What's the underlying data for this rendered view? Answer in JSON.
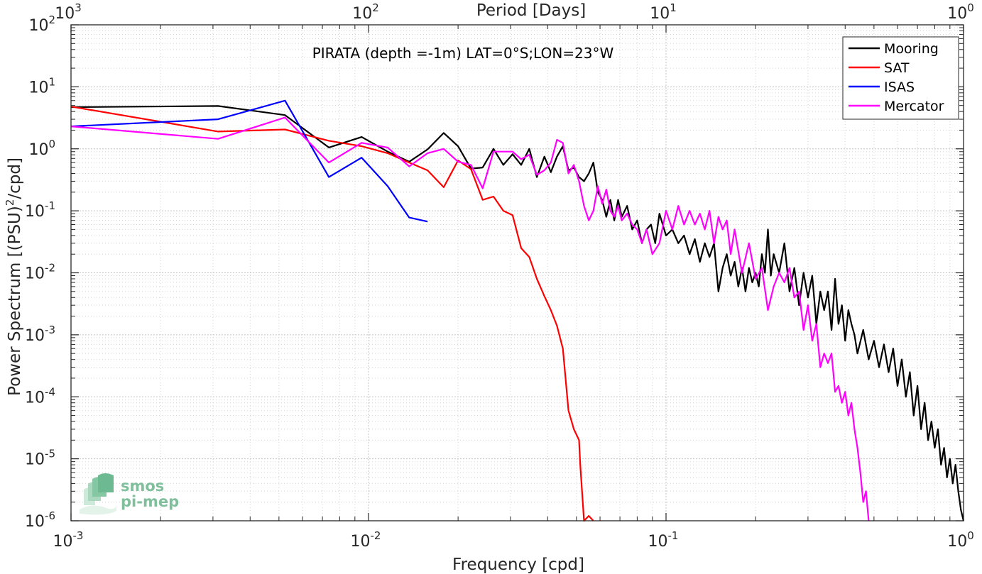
{
  "chart_data": {
    "type": "line",
    "title": "PIRATA (depth =-1m) LAT=0°S;LON=23°W",
    "xlabel": "Frequency [cpd]",
    "ylabel": "Power Spectrum [(PSU)",
    "ylabel_sup": "2",
    "ylabel_tail": "/cpd]",
    "x2label": "Period [Days]",
    "xscale": "log",
    "yscale": "log",
    "xlim": [
      0.001,
      1
    ],
    "ylim": [
      1e-06,
      100
    ],
    "grid": true,
    "legend_position": "top-right",
    "x_ticks": [
      {
        "base": "10",
        "exp": "-3"
      },
      {
        "base": "10",
        "exp": "-2"
      },
      {
        "base": "10",
        "exp": "-1"
      },
      {
        "base": "10",
        "exp": "0"
      }
    ],
    "x2_ticks": [
      {
        "base": "10",
        "exp": "3"
      },
      {
        "base": "10",
        "exp": "2"
      },
      {
        "base": "10",
        "exp": "1"
      },
      {
        "base": "10",
        "exp": "0"
      }
    ],
    "y_ticks": [
      {
        "base": "10",
        "exp": "-6"
      },
      {
        "base": "10",
        "exp": "-5"
      },
      {
        "base": "10",
        "exp": "-4"
      },
      {
        "base": "10",
        "exp": "-3"
      },
      {
        "base": "10",
        "exp": "-2"
      },
      {
        "base": "10",
        "exp": "-1"
      },
      {
        "base": "10",
        "exp": "0"
      },
      {
        "base": "10",
        "exp": "1"
      },
      {
        "base": "10",
        "exp": "2"
      }
    ],
    "series": [
      {
        "name": "Mooring",
        "color": "#000000",
        "points": [
          [
            0.001,
            4.7
          ],
          [
            0.00312,
            4.9
          ],
          [
            0.00524,
            3.5
          ],
          [
            0.00736,
            1.05
          ],
          [
            0.00948,
            1.55
          ],
          [
            0.0116,
            0.9
          ],
          [
            0.0137,
            0.62
          ],
          [
            0.0158,
            0.98
          ],
          [
            0.0179,
            1.8
          ],
          [
            0.02,
            1.1
          ],
          [
            0.0221,
            0.48
          ],
          [
            0.0242,
            0.5
          ],
          [
            0.0263,
            1.0
          ],
          [
            0.0284,
            0.55
          ],
          [
            0.0305,
            0.82
          ],
          [
            0.0326,
            0.55
          ],
          [
            0.0347,
            1.0
          ],
          [
            0.0368,
            0.35
          ],
          [
            0.039,
            0.75
          ],
          [
            0.041,
            0.42
          ],
          [
            0.043,
            0.75
          ],
          [
            0.045,
            1.1
          ],
          [
            0.047,
            0.45
          ],
          [
            0.049,
            0.5
          ],
          [
            0.051,
            0.35
          ],
          [
            0.053,
            0.3
          ],
          [
            0.055,
            0.4
          ],
          [
            0.057,
            0.6
          ],
          [
            0.059,
            0.2
          ],
          [
            0.061,
            0.15
          ],
          [
            0.063,
            0.08
          ],
          [
            0.065,
            0.15
          ],
          [
            0.067,
            0.07
          ],
          [
            0.069,
            0.15
          ],
          [
            0.071,
            0.08
          ],
          [
            0.074,
            0.12
          ],
          [
            0.077,
            0.05
          ],
          [
            0.08,
            0.07
          ],
          [
            0.083,
            0.03
          ],
          [
            0.086,
            0.05
          ],
          [
            0.089,
            0.06
          ],
          [
            0.092,
            0.03
          ],
          [
            0.095,
            0.09
          ],
          [
            0.1,
            0.04
          ],
          [
            0.105,
            0.05
          ],
          [
            0.11,
            0.03
          ],
          [
            0.115,
            0.04
          ],
          [
            0.12,
            0.02
          ],
          [
            0.125,
            0.035
          ],
          [
            0.13,
            0.015
          ],
          [
            0.135,
            0.03
          ],
          [
            0.14,
            0.018
          ],
          [
            0.145,
            0.03
          ],
          [
            0.15,
            0.005
          ],
          [
            0.155,
            0.012
          ],
          [
            0.16,
            0.02
          ],
          [
            0.165,
            0.009
          ],
          [
            0.17,
            0.015
          ],
          [
            0.175,
            0.006
          ],
          [
            0.18,
            0.012
          ],
          [
            0.185,
            0.005
          ],
          [
            0.19,
            0.012
          ],
          [
            0.195,
            0.007
          ],
          [
            0.2,
            0.01
          ],
          [
            0.205,
            0.006
          ],
          [
            0.21,
            0.02
          ],
          [
            0.215,
            0.01
          ],
          [
            0.22,
            0.05
          ],
          [
            0.225,
            0.009
          ],
          [
            0.23,
            0.02
          ],
          [
            0.24,
            0.01
          ],
          [
            0.25,
            0.03
          ],
          [
            0.26,
            0.005
          ],
          [
            0.27,
            0.012
          ],
          [
            0.28,
            0.003
          ],
          [
            0.29,
            0.01
          ],
          [
            0.3,
            0.004
          ],
          [
            0.31,
            0.009
          ],
          [
            0.32,
            0.0015
          ],
          [
            0.33,
            0.005
          ],
          [
            0.34,
            0.0025
          ],
          [
            0.35,
            0.005
          ],
          [
            0.36,
            0.0012
          ],
          [
            0.37,
            0.008
          ],
          [
            0.38,
            0.0015
          ],
          [
            0.39,
            0.003
          ],
          [
            0.4,
            0.0008
          ],
          [
            0.41,
            0.0025
          ],
          [
            0.42,
            0.0015
          ],
          [
            0.43,
            0.001
          ],
          [
            0.44,
            0.0005
          ],
          [
            0.46,
            0.0012
          ],
          [
            0.48,
            0.0004
          ],
          [
            0.5,
            0.0008
          ],
          [
            0.52,
            0.0003
          ],
          [
            0.54,
            0.0007
          ],
          [
            0.56,
            0.00025
          ],
          [
            0.58,
            0.0006
          ],
          [
            0.6,
            0.00015
          ],
          [
            0.62,
            0.0004
          ],
          [
            0.64,
            0.0001
          ],
          [
            0.66,
            0.00025
          ],
          [
            0.68,
            5e-05
          ],
          [
            0.7,
            0.00015
          ],
          [
            0.72,
            3e-05
          ],
          [
            0.74,
            8e-05
          ],
          [
            0.76,
            2e-05
          ],
          [
            0.78,
            4e-05
          ],
          [
            0.8,
            1.5e-05
          ],
          [
            0.82,
            3e-05
          ],
          [
            0.84,
            8e-06
          ],
          [
            0.86,
            1.5e-05
          ],
          [
            0.88,
            5e-06
          ],
          [
            0.9,
            1e-05
          ],
          [
            0.92,
            4e-06
          ],
          [
            0.94,
            8e-06
          ],
          [
            0.96,
            3e-06
          ],
          [
            0.98,
            1.5e-06
          ],
          [
            1.0,
            1e-06
          ]
        ]
      },
      {
        "name": "SAT",
        "color": "#ff0000",
        "points": [
          [
            0.001,
            4.8
          ],
          [
            0.00312,
            1.9
          ],
          [
            0.00524,
            2.05
          ],
          [
            0.00736,
            1.35
          ],
          [
            0.00948,
            1.1
          ],
          [
            0.0116,
            0.85
          ],
          [
            0.0137,
            0.6
          ],
          [
            0.0158,
            0.45
          ],
          [
            0.0179,
            0.24
          ],
          [
            0.02,
            0.65
          ],
          [
            0.0221,
            0.47
          ],
          [
            0.0242,
            0.15
          ],
          [
            0.0263,
            0.17
          ],
          [
            0.0284,
            0.1
          ],
          [
            0.0305,
            0.085
          ],
          [
            0.0326,
            0.025
          ],
          [
            0.0347,
            0.018
          ],
          [
            0.0368,
            0.008
          ],
          [
            0.039,
            0.0042
          ],
          [
            0.041,
            0.0025
          ],
          [
            0.043,
            0.0014
          ],
          [
            0.045,
            0.0006
          ],
          [
            0.047,
            6e-05
          ],
          [
            0.049,
            3e-05
          ],
          [
            0.051,
            2e-05
          ],
          [
            0.0515,
            8e-06
          ],
          [
            0.053,
            1e-06
          ],
          [
            0.055,
            1.2e-06
          ],
          [
            0.057,
            1e-06
          ]
        ]
      },
      {
        "name": "ISAS",
        "color": "#0000ff",
        "points": [
          [
            0.001,
            2.3
          ],
          [
            0.00312,
            3.0
          ],
          [
            0.00524,
            6.0
          ],
          [
            0.00736,
            0.35
          ],
          [
            0.00948,
            0.72
          ],
          [
            0.0116,
            0.25
          ],
          [
            0.0137,
            0.078
          ],
          [
            0.0158,
            0.067
          ]
        ]
      },
      {
        "name": "Mercator",
        "color": "#ff00ff",
        "points": [
          [
            0.001,
            2.3
          ],
          [
            0.00312,
            1.45
          ],
          [
            0.00524,
            3.2
          ],
          [
            0.00736,
            0.6
          ],
          [
            0.00948,
            1.25
          ],
          [
            0.0116,
            1.05
          ],
          [
            0.0137,
            0.52
          ],
          [
            0.0158,
            0.85
          ],
          [
            0.0179,
            1.0
          ],
          [
            0.02,
            0.62
          ],
          [
            0.0221,
            0.55
          ],
          [
            0.0242,
            0.23
          ],
          [
            0.0263,
            0.9
          ],
          [
            0.0284,
            0.9
          ],
          [
            0.0305,
            0.9
          ],
          [
            0.0326,
            0.68
          ],
          [
            0.0347,
            0.8
          ],
          [
            0.0368,
            0.38
          ],
          [
            0.039,
            0.45
          ],
          [
            0.041,
            0.6
          ],
          [
            0.043,
            1.4
          ],
          [
            0.045,
            1.25
          ],
          [
            0.047,
            0.4
          ],
          [
            0.049,
            0.55
          ],
          [
            0.051,
            0.3
          ],
          [
            0.053,
            0.12
          ],
          [
            0.055,
            0.07
          ],
          [
            0.057,
            0.1
          ],
          [
            0.059,
            0.25
          ],
          [
            0.061,
            0.13
          ],
          [
            0.063,
            0.22
          ],
          [
            0.065,
            0.1
          ],
          [
            0.067,
            0.08
          ],
          [
            0.069,
            0.12
          ],
          [
            0.071,
            0.07
          ],
          [
            0.074,
            0.09
          ],
          [
            0.077,
            0.06
          ],
          [
            0.08,
            0.05
          ],
          [
            0.083,
            0.03
          ],
          [
            0.086,
            0.05
          ],
          [
            0.09,
            0.02
          ],
          [
            0.095,
            0.03
          ],
          [
            0.1,
            0.1
          ],
          [
            0.105,
            0.05
          ],
          [
            0.11,
            0.12
          ],
          [
            0.115,
            0.06
          ],
          [
            0.12,
            0.1
          ],
          [
            0.125,
            0.06
          ],
          [
            0.13,
            0.09
          ],
          [
            0.135,
            0.05
          ],
          [
            0.14,
            0.1
          ],
          [
            0.145,
            0.03
          ],
          [
            0.15,
            0.08
          ],
          [
            0.155,
            0.05
          ],
          [
            0.16,
            0.07
          ],
          [
            0.165,
            0.02
          ],
          [
            0.17,
            0.05
          ],
          [
            0.18,
            0.01
          ],
          [
            0.19,
            0.03
          ],
          [
            0.2,
            0.008
          ],
          [
            0.21,
            0.012
          ],
          [
            0.22,
            0.0025
          ],
          [
            0.23,
            0.006
          ],
          [
            0.24,
            0.01
          ],
          [
            0.25,
            0.007
          ],
          [
            0.26,
            0.012
          ],
          [
            0.27,
            0.004
          ],
          [
            0.28,
            0.005
          ],
          [
            0.29,
            0.0012
          ],
          [
            0.3,
            0.003
          ],
          [
            0.31,
            0.0008
          ],
          [
            0.32,
            0.0015
          ],
          [
            0.33,
            0.0003
          ],
          [
            0.34,
            0.0005
          ],
          [
            0.35,
            0.00035
          ],
          [
            0.36,
            0.0005
          ],
          [
            0.37,
            0.00012
          ],
          [
            0.38,
            0.00015
          ],
          [
            0.39,
            8e-05
          ],
          [
            0.4,
            0.00012
          ],
          [
            0.41,
            5e-05
          ],
          [
            0.42,
            8e-05
          ],
          [
            0.43,
            3e-05
          ],
          [
            0.44,
            1.5e-05
          ],
          [
            0.45,
            6e-06
          ],
          [
            0.46,
            2e-06
          ],
          [
            0.47,
            3e-06
          ],
          [
            0.48,
            1e-06
          ]
        ]
      }
    ]
  },
  "logo": {
    "line1": "smos",
    "line2": "pi-mep"
  }
}
